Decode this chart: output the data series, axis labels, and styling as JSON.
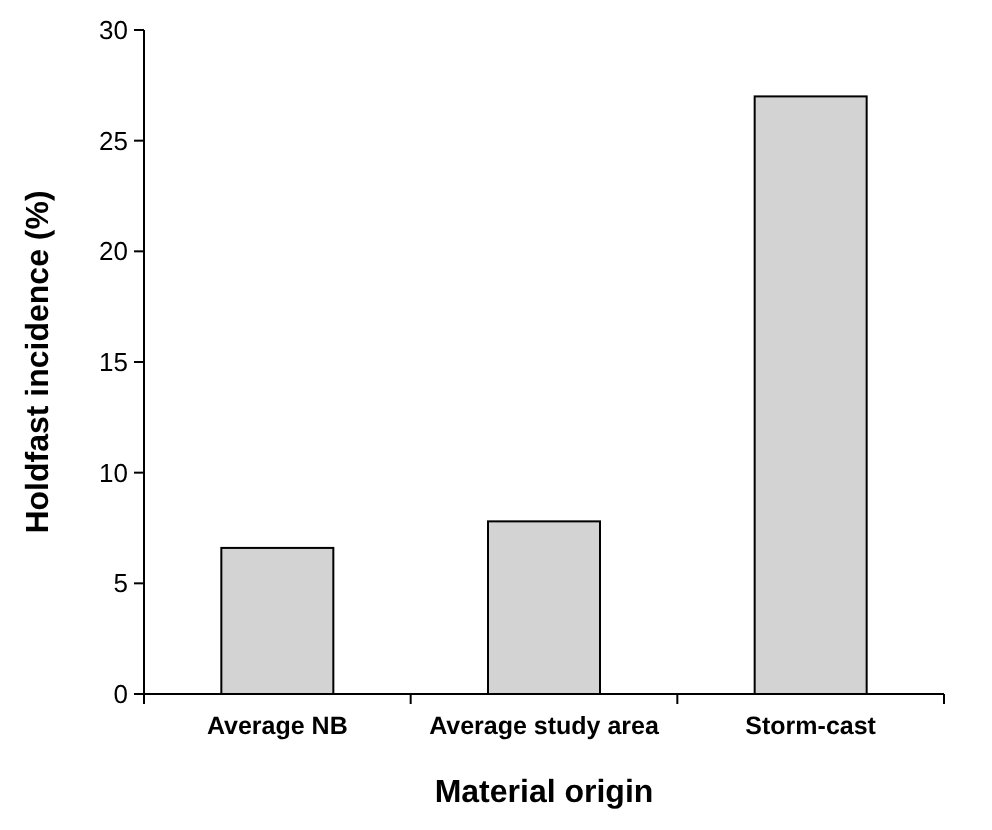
{
  "chart_data": {
    "type": "bar",
    "xlabel": "Material origin",
    "ylabel": "Holdfast incidence (%)",
    "categories": [
      "Average NB",
      "Average study area",
      "Storm-cast"
    ],
    "values": [
      6.6,
      7.8,
      27
    ],
    "color": "#d3d3d3",
    "ylim": [
      0,
      30
    ],
    "yticks": [
      0,
      5,
      10,
      15,
      20,
      25,
      30
    ],
    "grid": false
  }
}
